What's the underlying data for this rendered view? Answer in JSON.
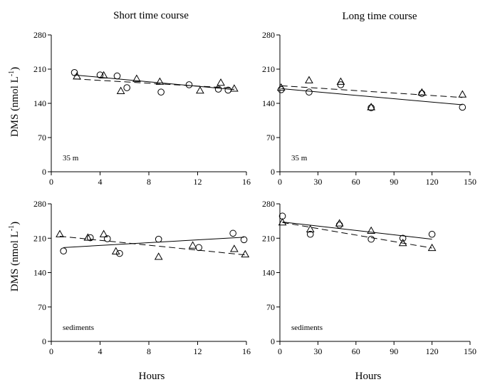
{
  "column_titles": [
    "Short time course",
    "Long time course"
  ],
  "ylabel": "DMS (nmol L",
  "ylabel_sup": "-1",
  "ylabel_close": ")",
  "xlabel": "Hours",
  "chart_data": [
    {
      "type": "scatter",
      "panel_label": "35 m",
      "xlim": [
        0,
        16
      ],
      "xticks": [
        0,
        4,
        8,
        12,
        16
      ],
      "ylim": [
        0,
        280
      ],
      "yticks": [
        0,
        70,
        140,
        210,
        280
      ],
      "series": [
        {
          "marker": "circle",
          "line": "solid",
          "points": [
            [
              1.9,
              203
            ],
            [
              4.0,
              198
            ],
            [
              5.4,
              196
            ],
            [
              6.2,
              172
            ],
            [
              9.0,
              163
            ],
            [
              11.3,
              178
            ],
            [
              13.7,
              169
            ],
            [
              14.5,
              167
            ]
          ],
          "fit": [
            [
              1.9,
              198
            ],
            [
              15.0,
              168
            ]
          ]
        },
        {
          "marker": "triangle",
          "line": "dashed",
          "points": [
            [
              2.1,
              195
            ],
            [
              4.3,
              197
            ],
            [
              5.7,
              165
            ],
            [
              7.0,
              190
            ],
            [
              8.9,
              184
            ],
            [
              12.2,
              166
            ],
            [
              13.9,
              182
            ],
            [
              15.0,
              170
            ]
          ],
          "fit": [
            [
              1.9,
              190
            ],
            [
              15.0,
              171
            ]
          ]
        }
      ]
    },
    {
      "type": "scatter",
      "panel_label": "35 m",
      "xlim": [
        0,
        150
      ],
      "xticks": [
        0,
        30,
        60,
        90,
        120,
        150
      ],
      "ylim": [
        0,
        280
      ],
      "yticks": [
        0,
        70,
        140,
        210,
        280
      ],
      "series": [
        {
          "marker": "circle",
          "line": "solid",
          "points": [
            [
              1,
              168
            ],
            [
              23,
              163
            ],
            [
              48,
              178
            ],
            [
              72,
              131
            ],
            [
              112,
              160
            ],
            [
              144,
              132
            ]
          ],
          "fit": [
            [
              1,
              170
            ],
            [
              144,
              137
            ]
          ]
        },
        {
          "marker": "triangle",
          "line": "dashed",
          "points": [
            [
              1,
              172
            ],
            [
              23,
              187
            ],
            [
              48,
              184
            ],
            [
              72,
              132
            ],
            [
              112,
              162
            ],
            [
              144,
              158
            ]
          ],
          "fit": [
            [
              1,
              176
            ],
            [
              144,
              152
            ]
          ]
        }
      ]
    },
    {
      "type": "scatter",
      "panel_label": "sediments",
      "xlim": [
        0,
        16
      ],
      "xticks": [
        0,
        4,
        8,
        12,
        16
      ],
      "ylim": [
        0,
        280
      ],
      "yticks": [
        0,
        70,
        140,
        210,
        280
      ],
      "series": [
        {
          "marker": "circle",
          "line": "solid",
          "points": [
            [
              1.0,
              184
            ],
            [
              3.2,
              211
            ],
            [
              4.6,
              209
            ],
            [
              5.6,
              179
            ],
            [
              8.8,
              208
            ],
            [
              12.1,
              191
            ],
            [
              14.9,
              220
            ],
            [
              15.8,
              207
            ]
          ],
          "fit": [
            [
              1.0,
              191
            ],
            [
              15.8,
              212
            ]
          ]
        },
        {
          "marker": "triangle",
          "line": "dashed",
          "points": [
            [
              0.7,
              218
            ],
            [
              3.0,
              211
            ],
            [
              4.3,
              218
            ],
            [
              5.3,
              183
            ],
            [
              8.8,
              172
            ],
            [
              11.6,
              195
            ],
            [
              15.0,
              188
            ],
            [
              15.9,
              177
            ]
          ],
          "fit": [
            [
              0.7,
              214
            ],
            [
              15.9,
              176
            ]
          ]
        }
      ]
    },
    {
      "type": "scatter",
      "panel_label": "sediments",
      "xlim": [
        0,
        150
      ],
      "xticks": [
        0,
        30,
        60,
        90,
        120,
        150
      ],
      "ylim": [
        0,
        280
      ],
      "yticks": [
        0,
        70,
        140,
        210,
        280
      ],
      "series": [
        {
          "marker": "circle",
          "line": "solid",
          "points": [
            [
              2,
              255
            ],
            [
              24,
              218
            ],
            [
              47,
              237
            ],
            [
              72,
              208
            ],
            [
              97,
              210
            ],
            [
              120,
              218
            ]
          ],
          "fit": [
            [
              2,
              243
            ],
            [
              120,
              208
            ]
          ]
        },
        {
          "marker": "triangle",
          "line": "dashed",
          "points": [
            [
              2,
              242
            ],
            [
              24,
              228
            ],
            [
              47,
              240
            ],
            [
              72,
              225
            ],
            [
              97,
              200
            ],
            [
              120,
              190
            ]
          ],
          "fit": [
            [
              2,
              242
            ],
            [
              120,
              190
            ]
          ]
        }
      ]
    }
  ]
}
